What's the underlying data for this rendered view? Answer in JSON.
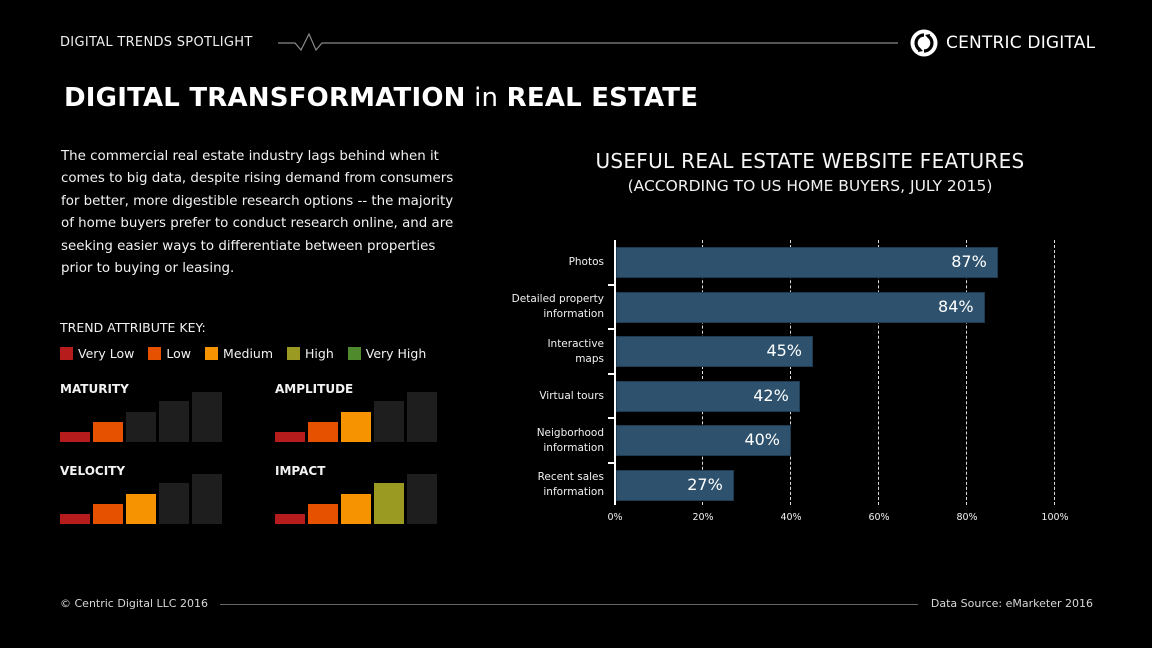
{
  "header": {
    "label": "DIGITAL TRENDS SPOTLIGHT",
    "brand": "CENTRIC DIGITAL"
  },
  "title": {
    "part1": "DIGITAL TRANSFORMATION",
    "part2": " in ",
    "part3": "REAL ESTATE"
  },
  "description": "The commercial real estate industry lags behind when it comes to big data, despite rising demand from consumers for better, more digestible research options -- the majority of home buyers prefer to conduct research online, and are seeking easier ways to differentiate between properties prior to buying or leasing.",
  "key": {
    "label": "TREND ATTRIBUTE KEY:",
    "items": [
      {
        "label": "Very Low",
        "color": "#b71c1c"
      },
      {
        "label": "Low",
        "color": "#e65100"
      },
      {
        "label": "Medium",
        "color": "#f59300"
      },
      {
        "label": "High",
        "color": "#9a9a22"
      },
      {
        "label": "Very High",
        "color": "#4f8a2d"
      }
    ],
    "empty_color": "#1e1e1e"
  },
  "attributes": [
    {
      "label": "MATURITY",
      "level": 2
    },
    {
      "label": "AMPLITUDE",
      "level": 3
    },
    {
      "label": "VELOCITY",
      "level": 3
    },
    {
      "label": "IMPACT",
      "level": 4
    }
  ],
  "chart_data": {
    "type": "bar",
    "orientation": "horizontal",
    "title": "USEFUL REAL ESTATE WEBSITE FEATURES",
    "subtitle": "(ACCORDING TO US HOME BUYERS, JULY 2015)",
    "categories": [
      "Photos",
      "Detailed property information",
      "Interactive maps",
      "Virtual tours",
      "Neigborhood information",
      "Recent sales information"
    ],
    "category_lines": [
      [
        "Photos"
      ],
      [
        "Detailed property",
        "information"
      ],
      [
        "Interactive",
        "maps"
      ],
      [
        "Virtual tours"
      ],
      [
        "Neigborhood",
        "information"
      ],
      [
        "Recent sales",
        "information"
      ]
    ],
    "values": [
      87,
      84,
      45,
      42,
      40,
      27
    ],
    "value_labels": [
      "87%",
      "84%",
      "45%",
      "42%",
      "40%",
      "27%"
    ],
    "xlim": [
      0,
      100
    ],
    "xticks": [
      "0%",
      "20%",
      "40%",
      "60%",
      "80%",
      "100%"
    ],
    "grid": "vertical dashed",
    "bar_color": "#2e526d",
    "xlabel": "",
    "ylabel": ""
  },
  "footer": {
    "copyright": "© Centric Digital LLC 2016",
    "source": "Data Source: eMarketer 2016"
  }
}
